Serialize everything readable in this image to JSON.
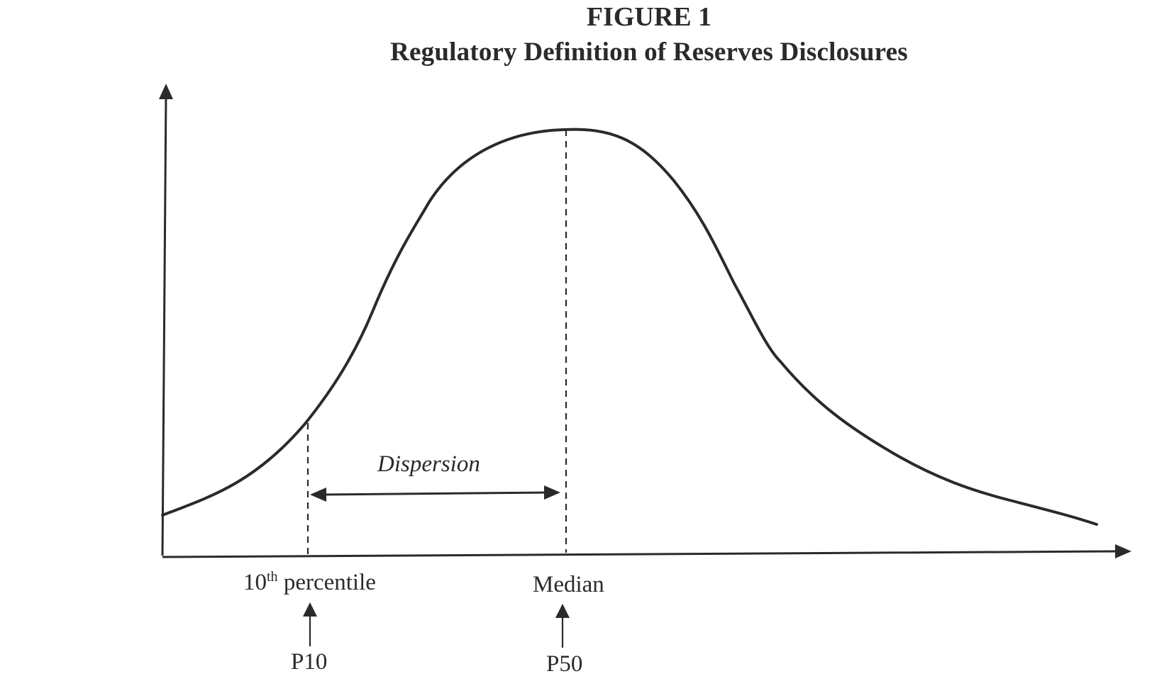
{
  "figure": {
    "number": "FIGURE 1",
    "title": "Regulatory Definition of Reserves Disclosures"
  },
  "labels": {
    "dispersion": "Dispersion",
    "tenth_percentile_number": "10",
    "tenth_percentile_suffix": "th",
    "tenth_percentile_word": " percentile",
    "median": "Median",
    "p10": "P10",
    "p50": "P50"
  },
  "colors": {
    "ink": "#2a2a2e",
    "background": "#ffffff"
  }
}
